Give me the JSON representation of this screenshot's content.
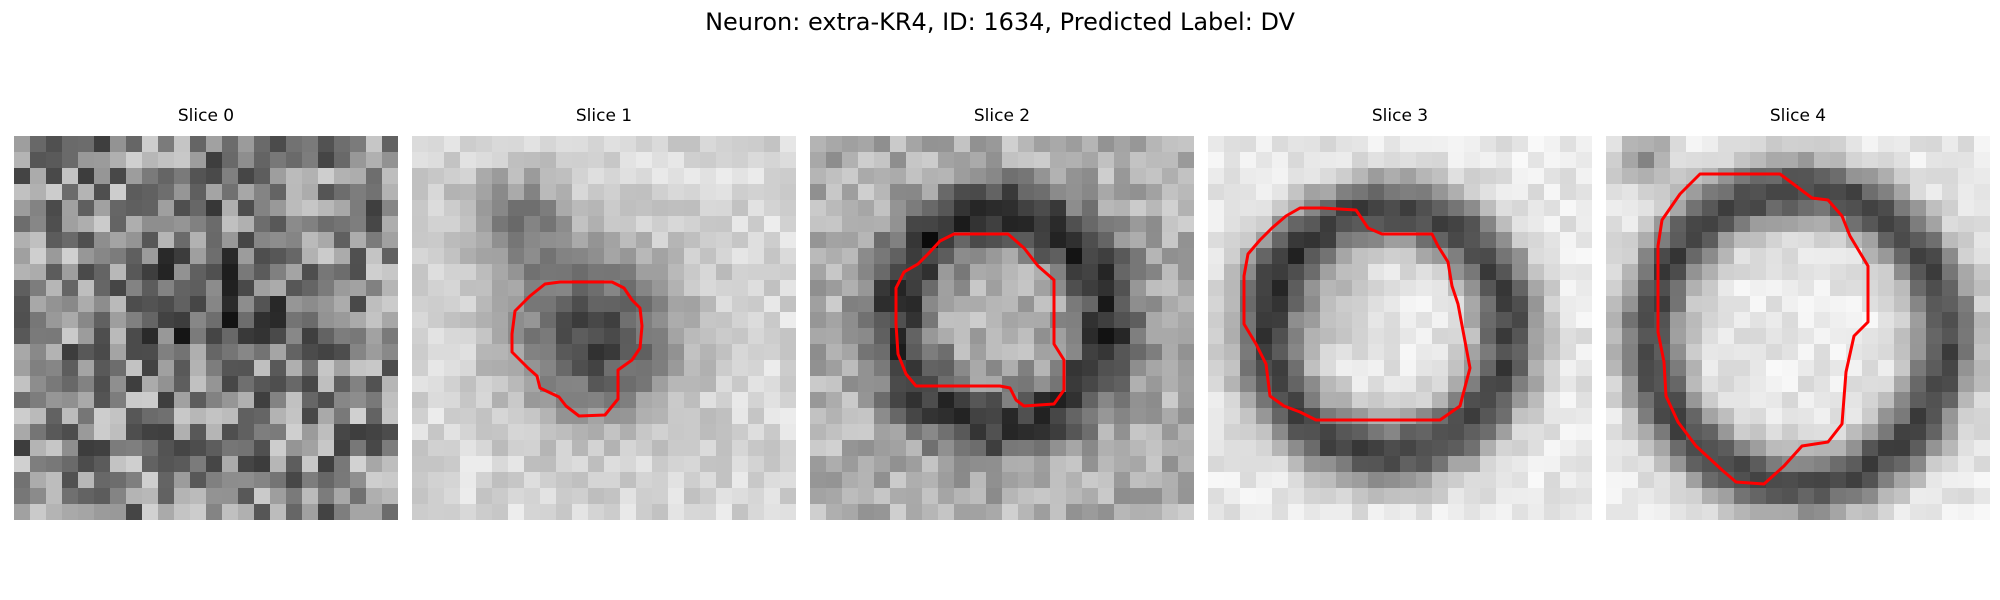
{
  "figure": {
    "title": "Neuron: extra-KR4, ID: 1634, Predicted Label: DV",
    "contour_color": "#ff0000"
  },
  "panels": [
    {
      "title": "Slice 0"
    },
    {
      "title": "Slice 1"
    },
    {
      "title": "Slice 2"
    },
    {
      "title": "Slice 3"
    },
    {
      "title": "Slice 4"
    }
  ]
}
